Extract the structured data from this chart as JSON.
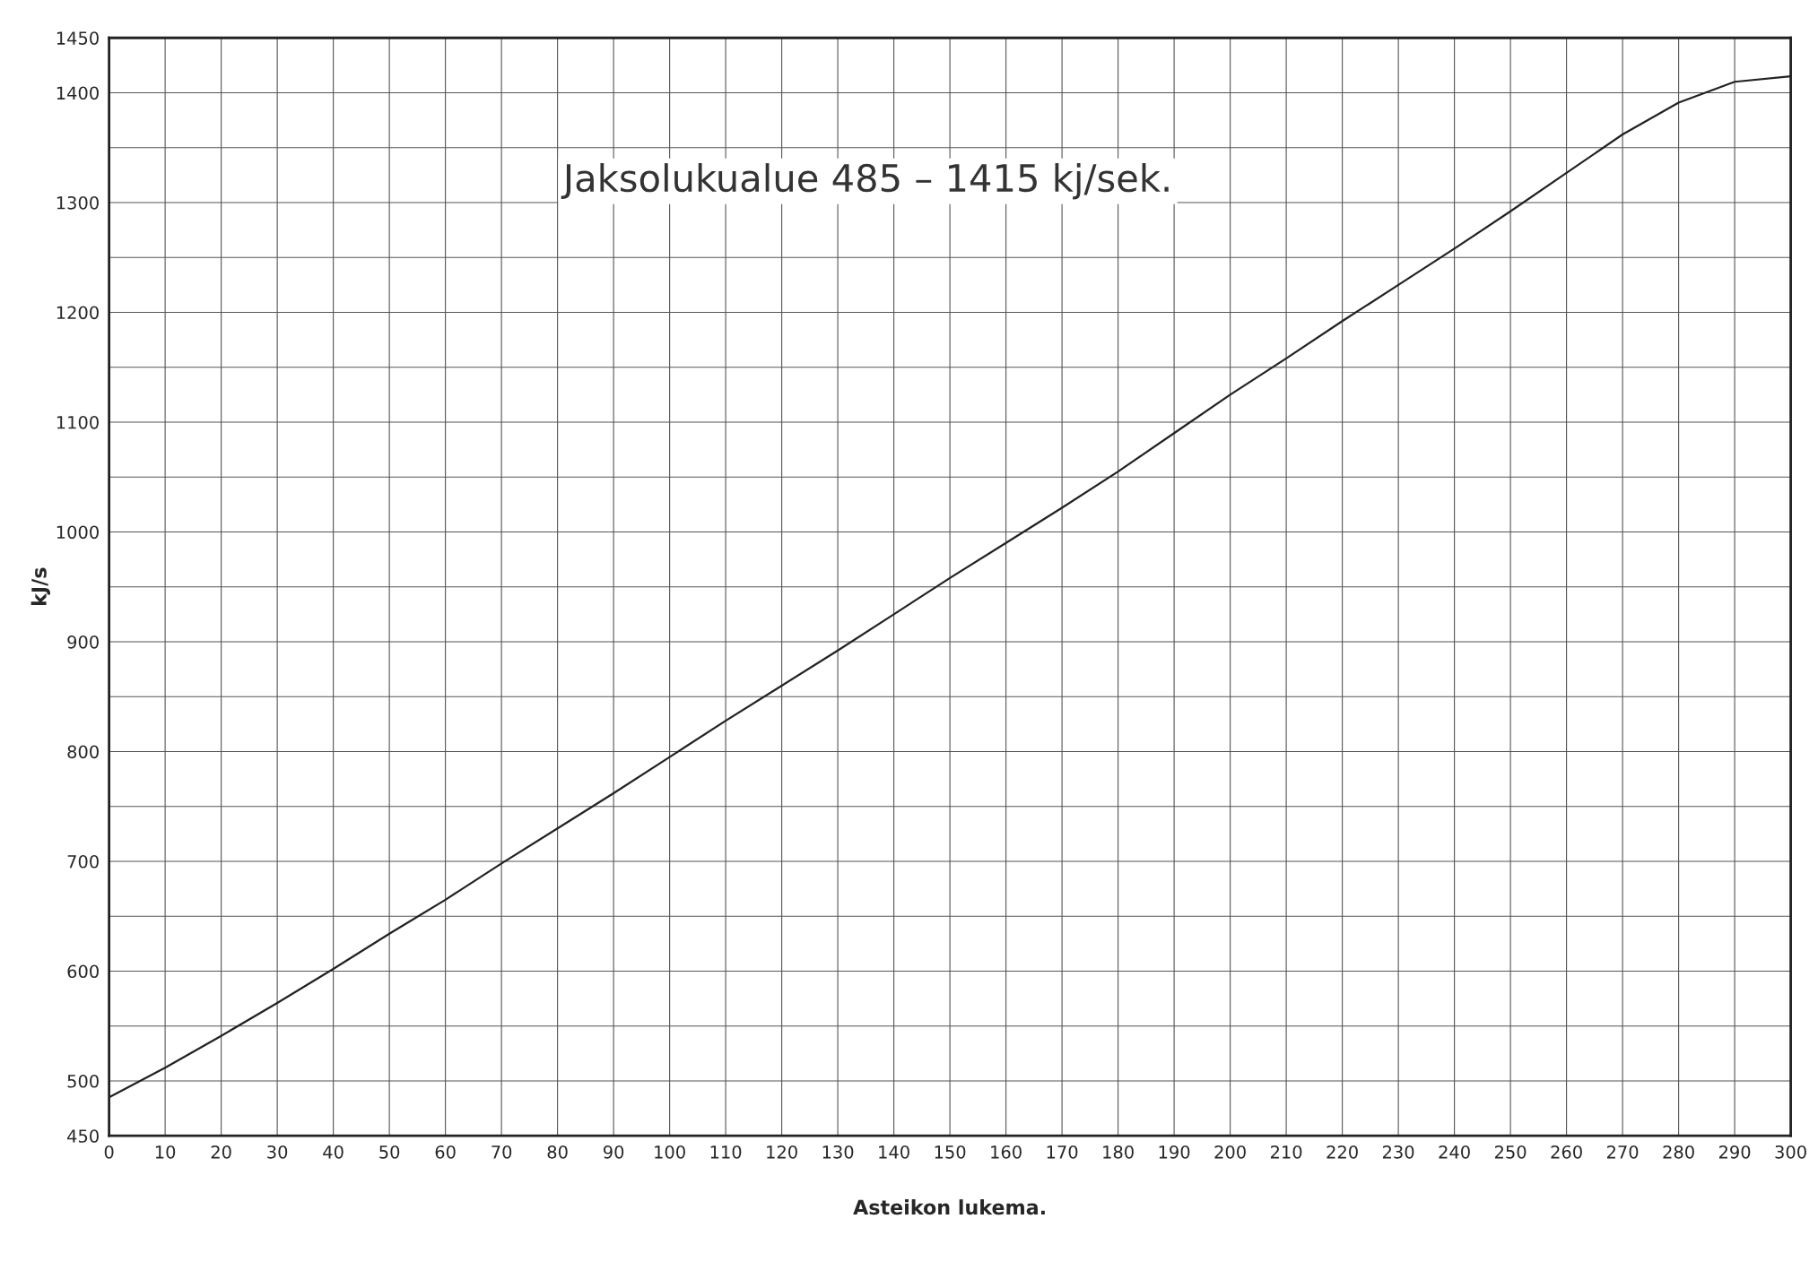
{
  "chart_data": {
    "type": "line",
    "xlabel": "Asteikon lukema.",
    "ylabel": "kJ/s",
    "annotations": [
      "Jaksolukualue 485 – 1415 kj/sek."
    ],
    "x": [
      0,
      10,
      20,
      30,
      40,
      50,
      60,
      70,
      80,
      90,
      100,
      110,
      120,
      130,
      140,
      150,
      160,
      170,
      180,
      190,
      200,
      210,
      220,
      230,
      240,
      250,
      260,
      270,
      280,
      290,
      300
    ],
    "series": [
      {
        "color": "#222222",
        "values": [
          485,
          512,
          541,
          571,
          602,
          634,
          665,
          698,
          730,
          762,
          795,
          828,
          860,
          892,
          925,
          958,
          990,
          1022,
          1055,
          1090,
          1125,
          1158,
          1192,
          1225,
          1258,
          1292,
          1327,
          1362,
          1391,
          1410,
          1415
        ]
      }
    ],
    "xlim": [
      0,
      300
    ],
    "xticks": [
      0,
      10,
      20,
      30,
      40,
      50,
      60,
      70,
      80,
      90,
      100,
      110,
      120,
      130,
      140,
      150,
      160,
      170,
      180,
      190,
      200,
      210,
      220,
      230,
      240,
      250,
      260,
      270,
      280,
      290,
      300
    ],
    "ylim": [
      450,
      1450
    ],
    "yticks": [
      450,
      500,
      {
        "value": 550,
        "label": null
      },
      600,
      {
        "value": 650,
        "label": null
      },
      700,
      {
        "value": 750,
        "label": null
      },
      800,
      {
        "value": 850,
        "label": null
      },
      900,
      {
        "value": 950,
        "label": null
      },
      1000,
      {
        "value": 1050,
        "label": null
      },
      1100,
      {
        "value": 1150,
        "label": null
      },
      1200,
      {
        "value": 1250,
        "label": null
      },
      1300,
      {
        "value": 1350,
        "label": null
      },
      1400,
      1450
    ],
    "grid": true,
    "marker": "none",
    "line_style": "solid"
  }
}
